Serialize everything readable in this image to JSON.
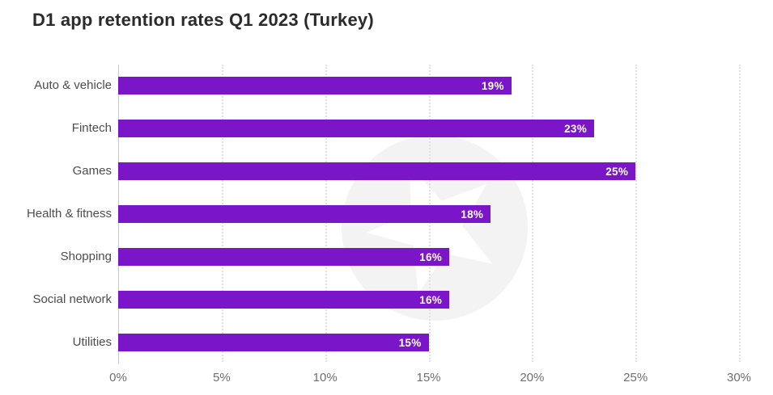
{
  "page": {
    "background_color": "#ffffff"
  },
  "header": {
    "title": "D1 app retention rates Q1 2023 (Turkey)"
  },
  "chart_data": {
    "type": "bar",
    "orientation": "horizontal",
    "title": "D1 app retention rates Q1 2023 (Turkey)",
    "categories": [
      "Auto & vehicle",
      "Fintech",
      "Games",
      "Health & fitness",
      "Shopping",
      "Social network",
      "Utilities"
    ],
    "values": [
      19,
      23,
      25,
      18,
      16,
      16,
      15
    ],
    "value_labels": [
      "19%",
      "23%",
      "25%",
      "18%",
      "16%",
      "16%",
      "15%"
    ],
    "x_tick_labels": [
      "0%",
      "5%",
      "10%",
      "15%",
      "20%",
      "25%",
      "30%"
    ],
    "x_tick_values": [
      0,
      5,
      10,
      15,
      20,
      25,
      30
    ],
    "xlim": [
      0,
      30
    ],
    "xlabel": "",
    "ylabel": "",
    "grid": "vertical-dotted",
    "legend": "none",
    "bar_color": "#7a16c8",
    "bar_value_text_color": "#ffffff",
    "category_label_color": "#4d4d4d",
    "tick_label_color": "#6e6e6e",
    "gridline_color": "#e0e0e0",
    "axis_line_color": "#c9c9c9",
    "title_color": "#2b2b2b"
  },
  "watermark": {
    "icon": "star-badge-logo",
    "circle_color": "#f3f3f3",
    "star_color": "#ffffff"
  }
}
